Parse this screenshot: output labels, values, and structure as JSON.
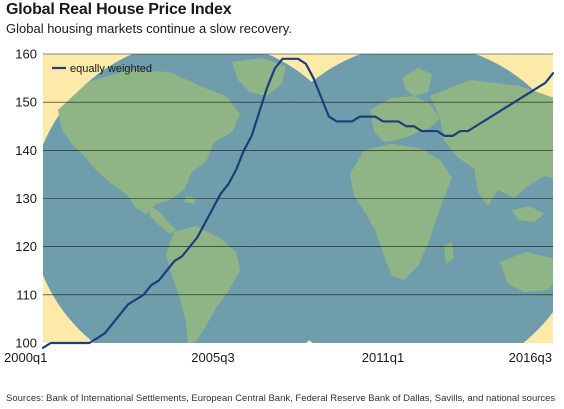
{
  "header": {
    "title": "Global Real House Price Index",
    "subtitle": "Global housing markets continue a slow recovery."
  },
  "footer": {
    "source": "Sources: Bank of International Settlements, European Central Bank, Federal Reserve Bank of Dallas, Savills, and national sources"
  },
  "colors": {
    "plot_background": "#fde9a8",
    "ocean": "#6f9dab",
    "land": "#8fb587",
    "line": "#1a3f7a"
  },
  "chart_data": {
    "type": "line",
    "title": "Global Real House Price Index",
    "subtitle": "Global housing markets continue a slow recovery.",
    "xlabel": "",
    "ylabel": "",
    "ylim": [
      100,
      160
    ],
    "yticks": [
      100,
      110,
      120,
      130,
      140,
      150,
      160
    ],
    "xticks": [
      "2000q1",
      "2005q3",
      "2011q1",
      "2016q3"
    ],
    "grid": "horizontal",
    "legend": "top-left",
    "series": [
      {
        "name": "equally weighted",
        "x": [
          "2000q1",
          "2000q2",
          "2000q3",
          "2000q4",
          "2001q1",
          "2001q2",
          "2001q3",
          "2001q4",
          "2002q1",
          "2002q2",
          "2002q3",
          "2002q4",
          "2003q1",
          "2003q2",
          "2003q3",
          "2003q4",
          "2004q1",
          "2004q2",
          "2004q3",
          "2004q4",
          "2005q1",
          "2005q2",
          "2005q3",
          "2005q4",
          "2006q1",
          "2006q2",
          "2006q3",
          "2006q4",
          "2007q1",
          "2007q2",
          "2007q3",
          "2007q4",
          "2008q1",
          "2008q2",
          "2008q3",
          "2008q4",
          "2009q1",
          "2009q2",
          "2009q3",
          "2009q4",
          "2010q1",
          "2010q2",
          "2010q3",
          "2010q4",
          "2011q1",
          "2011q2",
          "2011q3",
          "2011q4",
          "2012q1",
          "2012q2",
          "2012q3",
          "2012q4",
          "2013q1",
          "2013q2",
          "2013q3",
          "2013q4",
          "2014q1",
          "2014q2",
          "2014q3",
          "2014q4",
          "2015q1",
          "2015q2",
          "2015q3",
          "2015q4",
          "2016q1",
          "2016q2",
          "2016q3"
        ],
        "values": [
          99,
          100,
          100,
          100,
          100,
          100,
          100,
          101,
          102,
          104,
          106,
          108,
          109,
          110,
          112,
          113,
          115,
          117,
          118,
          120,
          122,
          125,
          128,
          131,
          133,
          136,
          140,
          143,
          148,
          153,
          157,
          159,
          159,
          159,
          158,
          155,
          151,
          147,
          146,
          146,
          146,
          147,
          147,
          147,
          146,
          146,
          146,
          145,
          145,
          144,
          144,
          144,
          143,
          143,
          144,
          144,
          145,
          146,
          147,
          148,
          149,
          150,
          151,
          152,
          153,
          154,
          156
        ]
      }
    ]
  }
}
